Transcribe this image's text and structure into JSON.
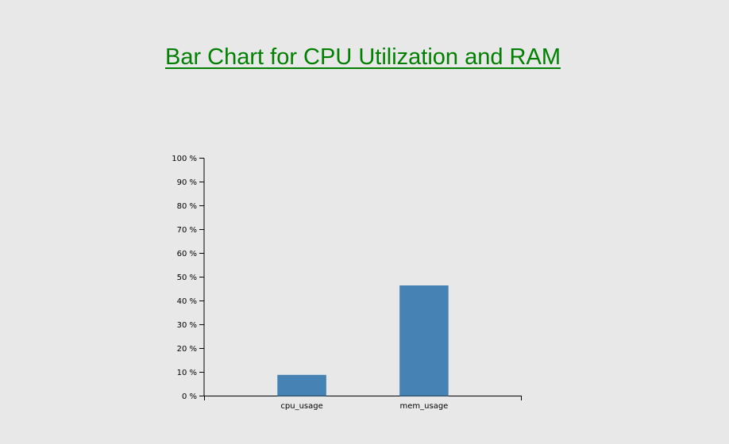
{
  "page": {
    "title": "Bar Chart for CPU Utilization and RAM",
    "background": "#e8e8e8",
    "title_color": "#008000"
  },
  "chart_data": {
    "type": "bar",
    "categories": [
      "cpu_usage",
      "mem_usage"
    ],
    "values": [
      8.9,
      46.5
    ],
    "ylim": [
      0,
      100
    ],
    "y_ticks": [
      0,
      10,
      20,
      30,
      40,
      50,
      60,
      70,
      80,
      90,
      100
    ],
    "y_tick_labels": [
      "0 %",
      "10 %",
      "20 %",
      "30 %",
      "40 %",
      "50 %",
      "60 %",
      "70 %",
      "80 %",
      "90 %",
      "100 %"
    ],
    "bar_color": "#4682b4",
    "grid": false,
    "legend": "none"
  }
}
